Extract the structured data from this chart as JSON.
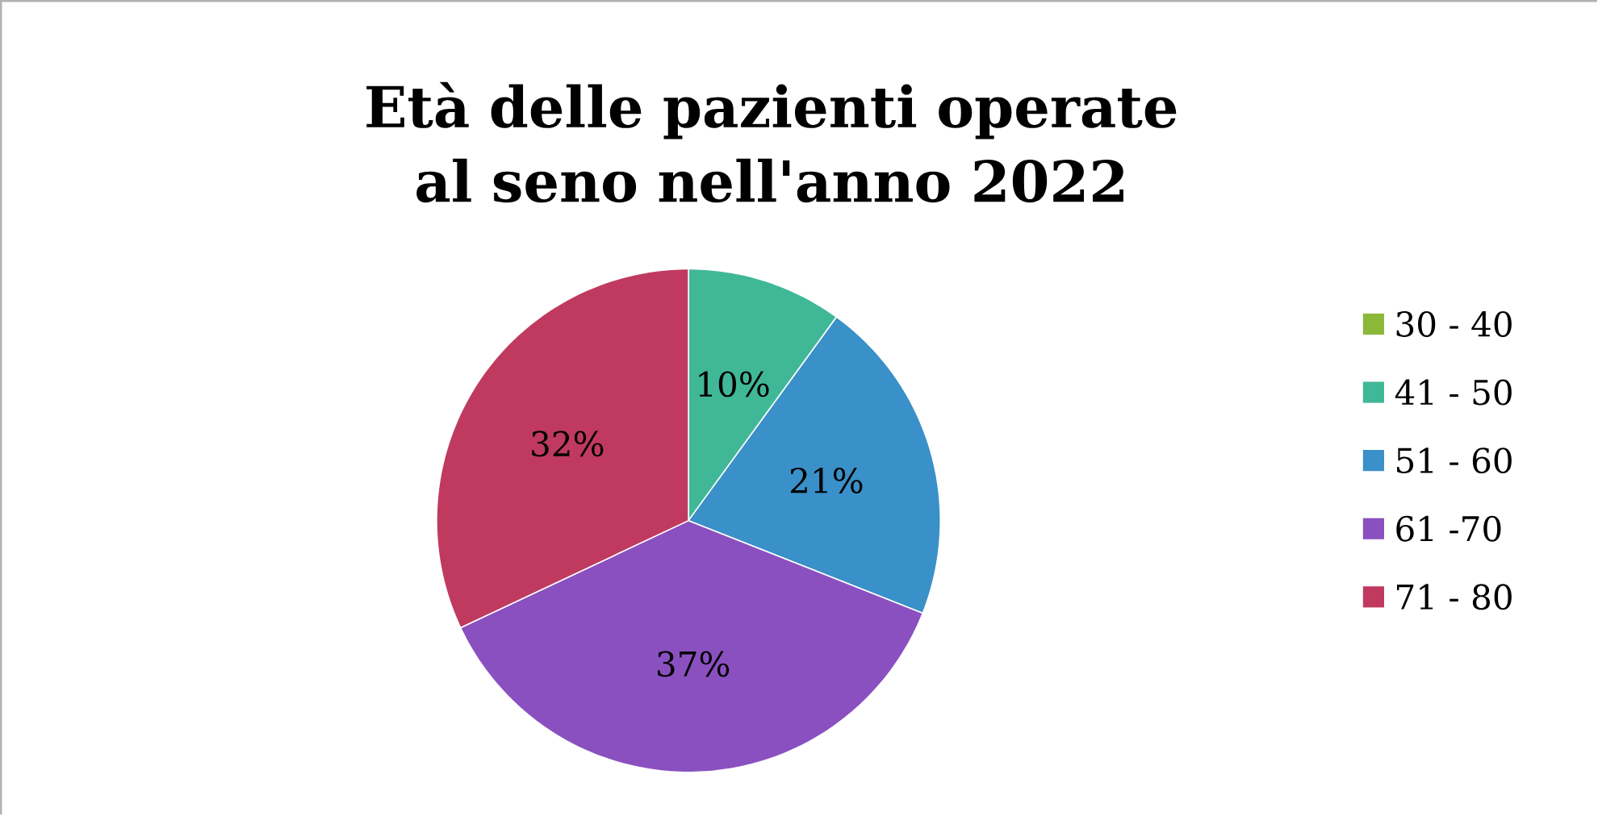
{
  "chart_data": {
    "type": "pie",
    "title": "Età delle pazienti operate al seno nell'anno 2022",
    "categories": [
      "30 - 40",
      "41 - 50",
      "51 - 60",
      "61 -70",
      "71 - 80"
    ],
    "values": [
      0,
      10,
      21,
      37,
      32
    ],
    "value_labels": [
      null,
      "10%",
      "21%",
      "37%",
      "32%"
    ],
    "colors": [
      "#8cb83a",
      "#40b898",
      "#3a90c8",
      "#8a50c0",
      "#c03a60"
    ],
    "legend": "right"
  }
}
